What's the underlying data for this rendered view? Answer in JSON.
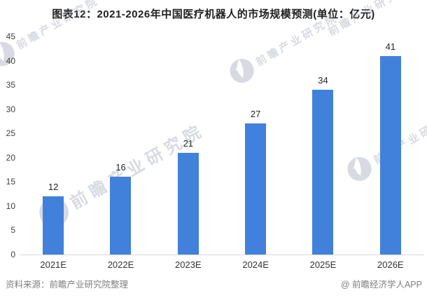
{
  "title": "图表12：2021-2026年中国医疗机器人的市场规模预测(单位：亿元)",
  "chart_data": {
    "type": "bar",
    "title": "图表12：2021-2026年中国医疗机器人的市场规模预测(单位：亿元)",
    "categories": [
      "2021E",
      "2022E",
      "2023E",
      "2024E",
      "2025E",
      "2026E"
    ],
    "values": [
      12,
      16,
      21,
      27,
      34,
      41
    ],
    "xlabel": "",
    "ylabel": "",
    "ylim": [
      0,
      45
    ],
    "yticks": [
      0,
      5,
      10,
      15,
      20,
      25,
      30,
      35,
      40,
      45
    ],
    "grid": false,
    "legend": "none",
    "data_labels_shown": true,
    "bar_color": "#4181DC"
  },
  "watermark": {
    "text": "前瞻产业研究院"
  },
  "footer": {
    "source": "资料来源：前瞻产业研究院整理",
    "credit": "@ 前瞻经济学人APP"
  },
  "colors": {
    "bar": "#4181DC",
    "title_text": "#1f1f1f",
    "axis_text": "#404040",
    "value_text": "#262626",
    "footer_text": "#7f7f7f",
    "axis_line": "#d9d9d9",
    "watermark": "#96a0af"
  }
}
